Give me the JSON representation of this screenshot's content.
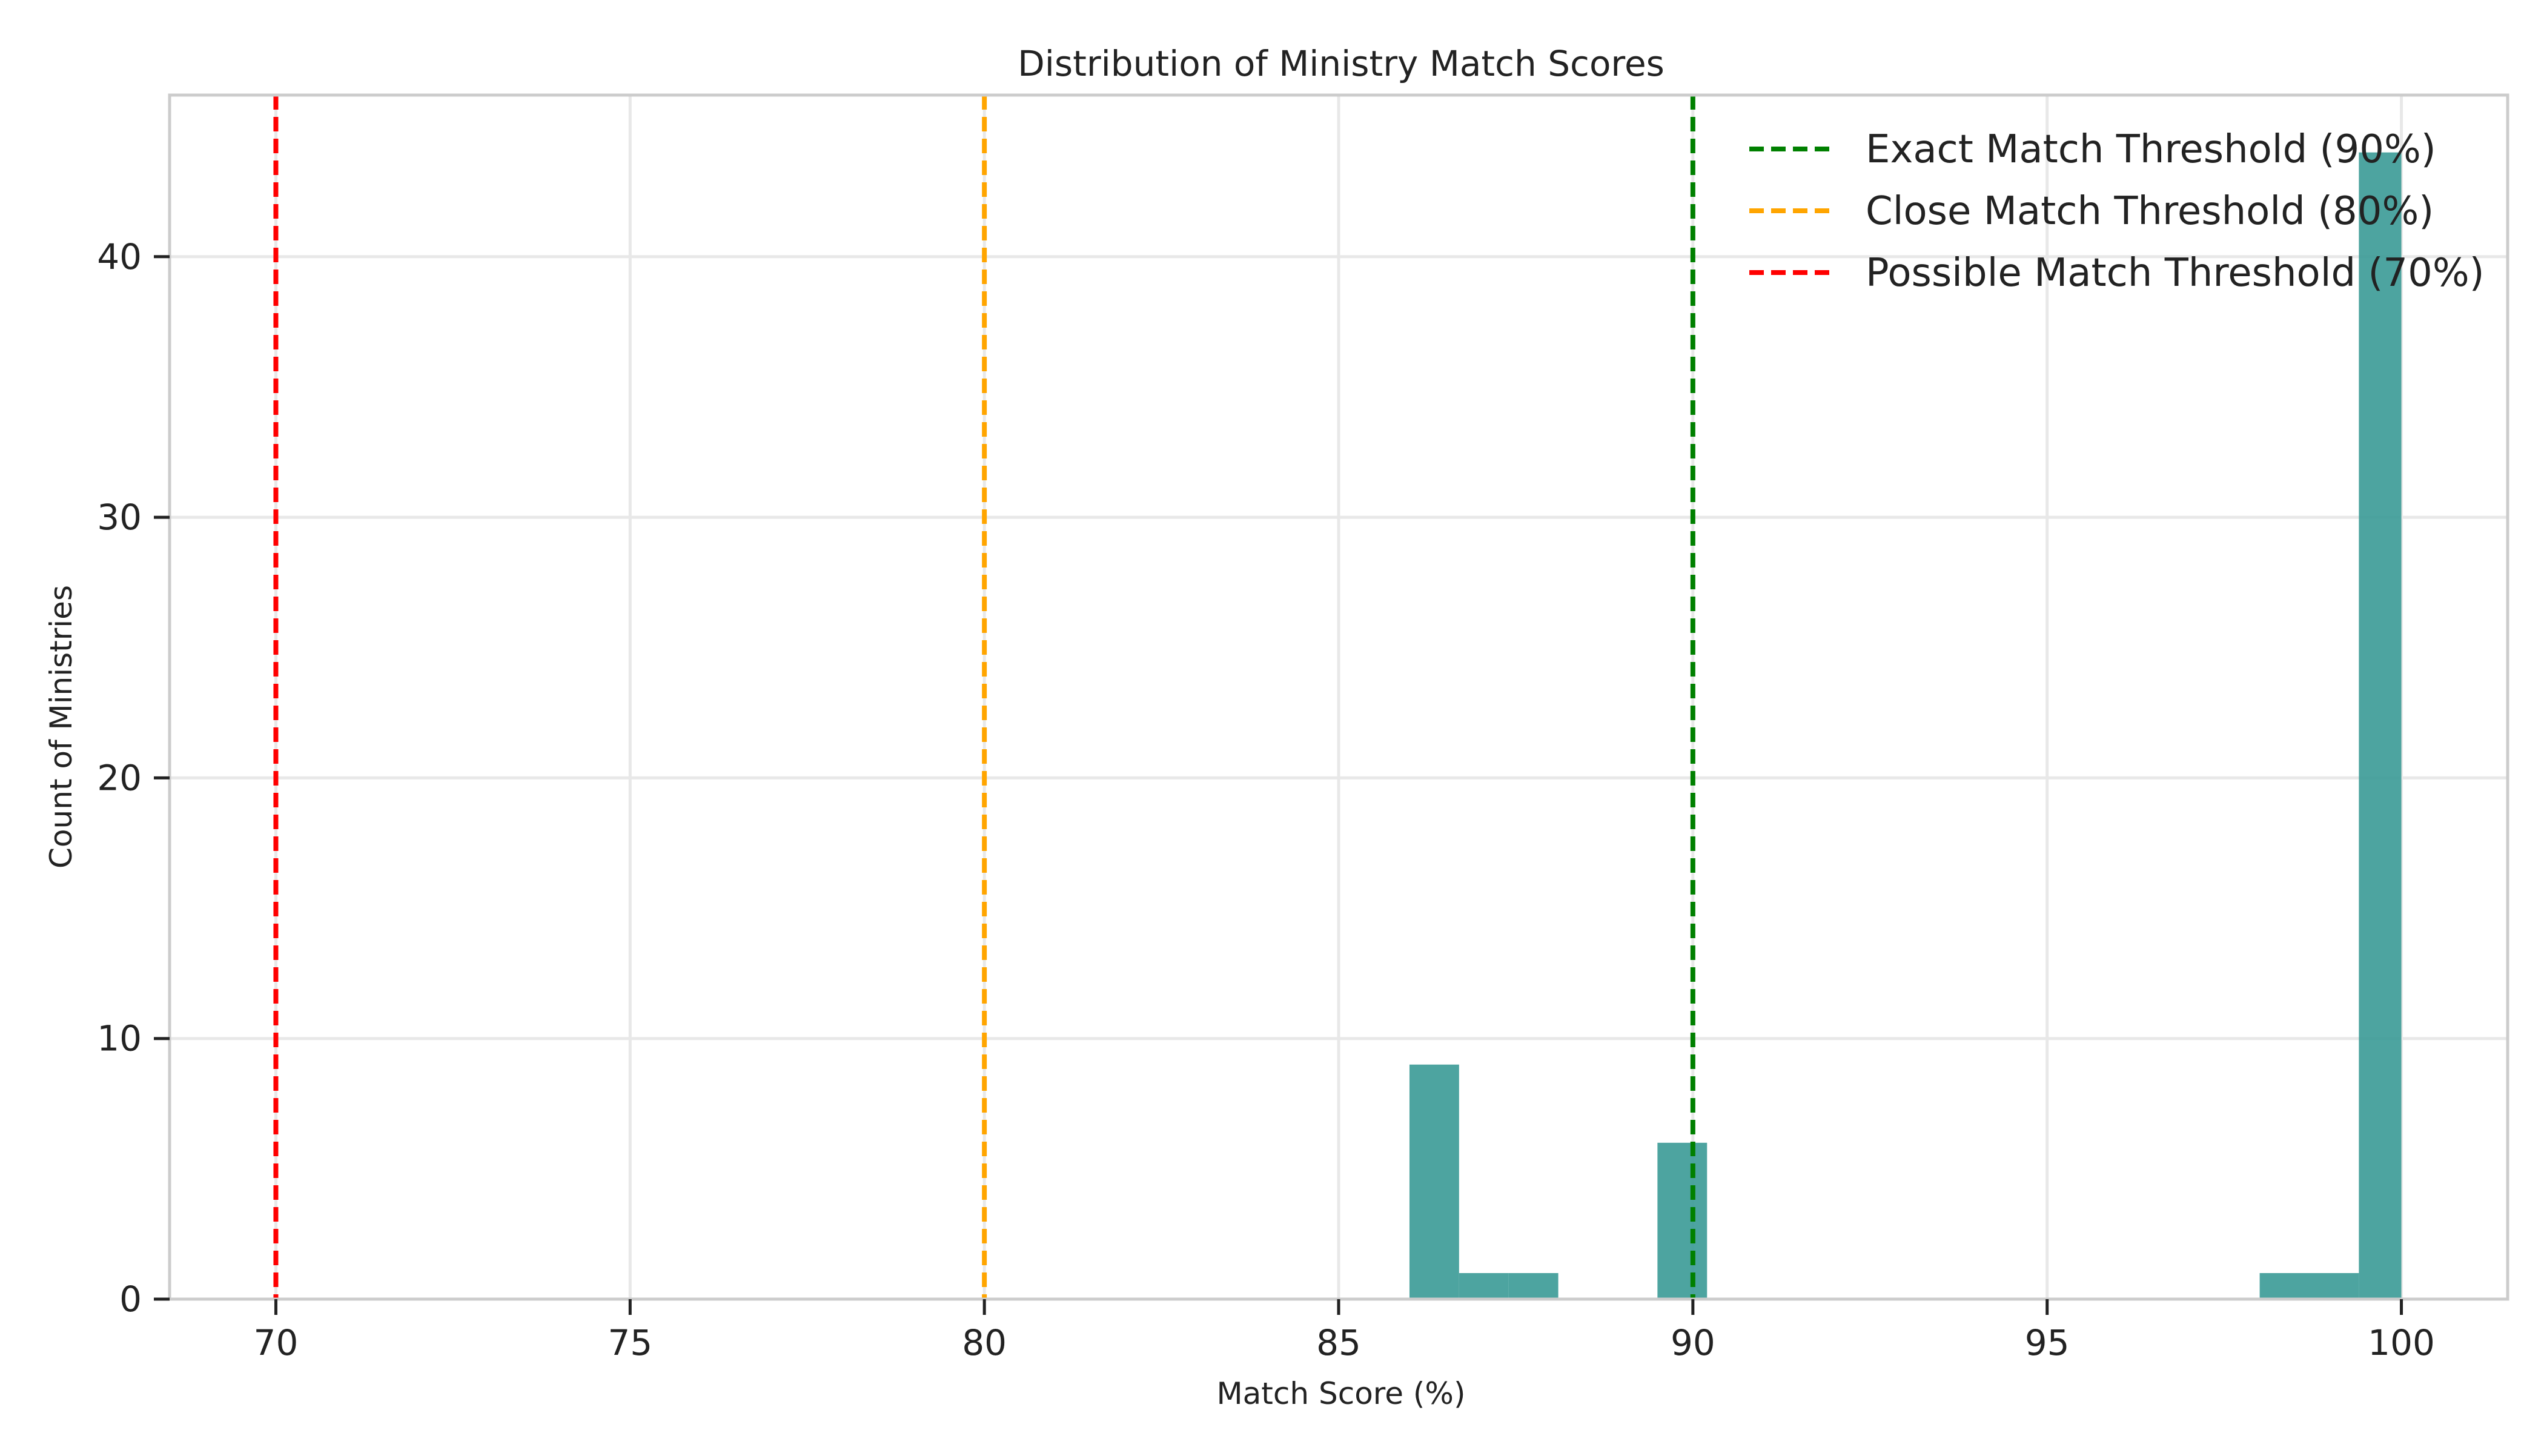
{
  "chart_data": {
    "type": "bar",
    "title": "Distribution of Ministry Match Scores",
    "xlabel": "Match Score (%)",
    "ylabel": "Count of Ministries",
    "xlim": [
      68.5,
      101.5
    ],
    "ylim": [
      0,
      46.2
    ],
    "x_ticks": [
      70,
      75,
      80,
      85,
      90,
      95,
      100
    ],
    "y_ticks": [
      0,
      10,
      20,
      30,
      40
    ],
    "grid": true,
    "legend_position": "top-right",
    "bar_color": "#3a9a96",
    "bins": [
      {
        "start": 86.0,
        "end": 86.7,
        "count": 9
      },
      {
        "start": 86.7,
        "end": 87.4,
        "count": 1
      },
      {
        "start": 87.4,
        "end": 88.1,
        "count": 1
      },
      {
        "start": 89.5,
        "end": 90.2,
        "count": 6
      },
      {
        "start": 98.0,
        "end": 98.7,
        "count": 1
      },
      {
        "start": 98.7,
        "end": 99.4,
        "count": 1
      },
      {
        "start": 99.4,
        "end": 100.0,
        "count": 44
      }
    ],
    "thresholds": [
      {
        "label": "Exact Match Threshold (90%)",
        "x": 90,
        "color": "#008000"
      },
      {
        "label": "Close Match Threshold (80%)",
        "x": 80,
        "color": "#ffa500"
      },
      {
        "label": "Possible Match Threshold (70%)",
        "x": 70,
        "color": "#ff0000"
      }
    ]
  }
}
